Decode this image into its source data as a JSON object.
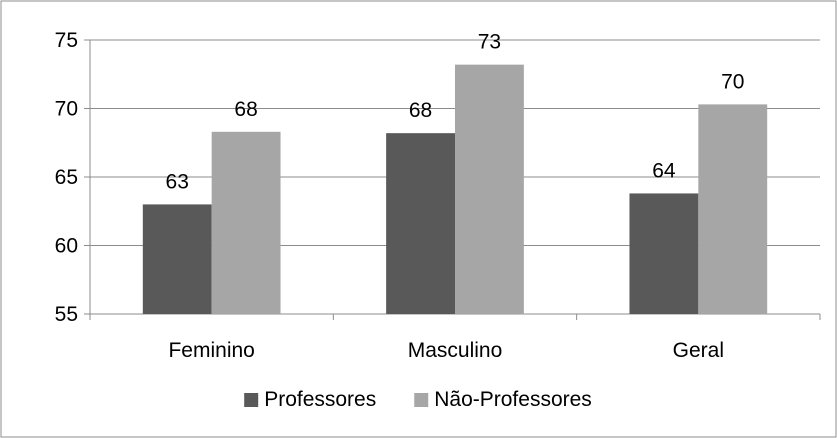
{
  "chart_data": {
    "type": "bar",
    "categories": [
      "Feminino",
      "Masculino",
      "Geral"
    ],
    "series": [
      {
        "name": "Professores",
        "values": [
          63.0,
          68.2,
          63.8
        ],
        "labels": [
          "63",
          "68",
          "64"
        ],
        "color": "#595959"
      },
      {
        "name": "Não-Professores",
        "values": [
          68.3,
          73.2,
          70.3
        ],
        "labels": [
          "68",
          "73",
          "70"
        ],
        "color": "#a6a6a6"
      }
    ],
    "title": "",
    "xlabel": "",
    "ylabel": "",
    "ylim": [
      55,
      75
    ],
    "yticks": [
      "55",
      "60",
      "65",
      "70",
      "75"
    ],
    "grid": true,
    "legend_position": "bottom"
  }
}
